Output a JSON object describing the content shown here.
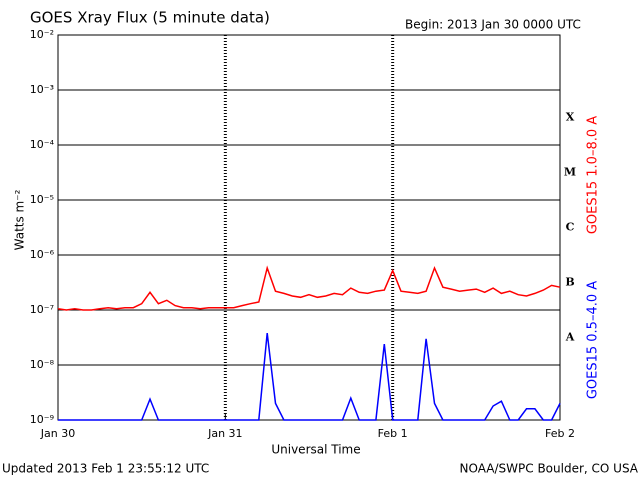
{
  "chart_data": {
    "type": "line",
    "title": "GOES Xray Flux (5 minute data)",
    "subtitle": "Begin:  2013 Jan 30 0000 UTC",
    "y_label": "Watts m⁻²",
    "x_label": "Universal Time",
    "footer_left": "Updated 2013 Feb  1 23:55:12 UTC",
    "footer_right": "NOAA/SWPC Boulder, CO USA",
    "class_labels": [
      "X",
      "M",
      "C",
      "B",
      "A"
    ],
    "log_y": true,
    "grid": true,
    "xlim": [
      0,
      3
    ],
    "xticks": [
      {
        "value": 0,
        "label": "Jan 30"
      },
      {
        "value": 1,
        "label": "Jan 31"
      },
      {
        "value": 2,
        "label": "Feb 1"
      },
      {
        "value": 3,
        "label": "Feb 2"
      }
    ],
    "ylim": [
      1e-09,
      0.01
    ],
    "yticks": [
      {
        "value": 1e-09,
        "label": "10⁻⁹"
      },
      {
        "value": 1e-08,
        "label": "10⁻⁸"
      },
      {
        "value": 1e-07,
        "label": "10⁻⁷"
      },
      {
        "value": 1e-06,
        "label": "10⁻⁶"
      },
      {
        "value": 1e-05,
        "label": "10⁻⁵"
      },
      {
        "value": 0.0001,
        "label": "10⁻⁴"
      },
      {
        "value": 0.001,
        "label": "10⁻³"
      },
      {
        "value": 0.01,
        "label": "10⁻²"
      }
    ],
    "x": [
      0,
      0.05,
      0.1,
      0.15,
      0.2,
      0.25,
      0.3,
      0.35,
      0.4,
      0.45,
      0.5,
      0.55,
      0.6,
      0.65,
      0.7,
      0.75,
      0.8,
      0.85,
      0.9,
      0.95,
      1,
      1.05,
      1.1,
      1.15,
      1.2,
      1.25,
      1.3,
      1.35,
      1.4,
      1.45,
      1.5,
      1.55,
      1.6,
      1.65,
      1.7,
      1.75,
      1.8,
      1.85,
      1.9,
      1.95,
      2,
      2.05,
      2.1,
      2.15,
      2.2,
      2.25,
      2.3,
      2.35,
      2.4,
      2.45,
      2.5,
      2.55,
      2.6,
      2.65,
      2.7,
      2.75,
      2.8,
      2.85,
      2.9,
      2.95,
      3
    ],
    "series": [
      {
        "name": "GOES15 1.0–8.0 A",
        "color": "#ff0000",
        "values": [
          1.05e-07,
          1e-07,
          1.05e-07,
          1e-07,
          1e-07,
          1.05e-07,
          1.1e-07,
          1.05e-07,
          1.1e-07,
          1.1e-07,
          1.3e-07,
          2.1e-07,
          1.3e-07,
          1.5e-07,
          1.2e-07,
          1.1e-07,
          1.1e-07,
          1.05e-07,
          1.1e-07,
          1.1e-07,
          1.1e-07,
          1.1e-07,
          1.2e-07,
          1.3e-07,
          1.4e-07,
          5.8e-07,
          2.2e-07,
          2e-07,
          1.8e-07,
          1.7e-07,
          1.9e-07,
          1.7e-07,
          1.8e-07,
          2e-07,
          1.9e-07,
          2.5e-07,
          2.1e-07,
          2e-07,
          2.2e-07,
          2.3e-07,
          5.2e-07,
          2.2e-07,
          2.1e-07,
          2e-07,
          2.2e-07,
          5.8e-07,
          2.6e-07,
          2.4e-07,
          2.2e-07,
          2.3e-07,
          2.4e-07,
          2.1e-07,
          2.5e-07,
          2e-07,
          2.2e-07,
          1.9e-07,
          1.8e-07,
          2e-07,
          2.3e-07,
          2.8e-07,
          2.6e-07
        ]
      },
      {
        "name": "GOES15 0.5–4.0 A",
        "color": "#0000ff",
        "values": [
          1e-09,
          1e-09,
          1e-09,
          1e-09,
          1e-09,
          1e-09,
          1e-09,
          1e-09,
          1e-09,
          1e-09,
          1e-09,
          2.4e-09,
          1e-09,
          1e-09,
          1e-09,
          1e-09,
          1e-09,
          1e-09,
          1e-09,
          1e-09,
          1e-09,
          1e-09,
          1e-09,
          1e-09,
          1e-09,
          3.8e-08,
          2e-09,
          1e-09,
          1e-09,
          1e-09,
          1e-09,
          1e-09,
          1e-09,
          1e-09,
          1e-09,
          2.5e-09,
          1e-09,
          1e-09,
          1e-09,
          2.4e-08,
          1e-09,
          1e-09,
          1e-09,
          1e-09,
          3e-08,
          2e-09,
          1e-09,
          1e-09,
          1e-09,
          1e-09,
          1e-09,
          1e-09,
          1.8e-09,
          2.2e-09,
          1e-09,
          1e-09,
          1.6e-09,
          1.6e-09,
          1e-09,
          1e-09,
          2e-09
        ]
      }
    ]
  }
}
